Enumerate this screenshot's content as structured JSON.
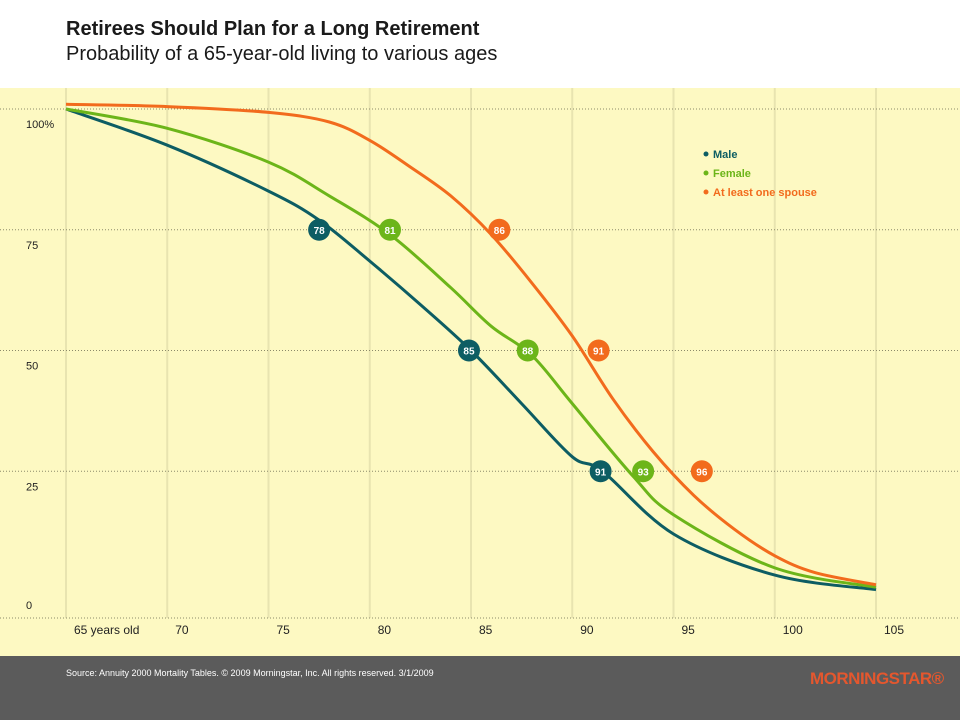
{
  "header": {
    "title": "Retirees Should Plan for a Long Retirement",
    "subtitle": "Probability of a 65-year-old living to various ages"
  },
  "footer": {
    "source": "Source: Annuity 2000 Mortality Tables. © 2009 Morningstar, Inc. All rights reserved. 3/1/2009",
    "logo": "MORNINGSTAR®"
  },
  "chart_data": {
    "type": "line",
    "title": "Retirees Should Plan for a Long Retirement",
    "subtitle": "Probability of a 65-year-old living to various ages",
    "xlabel": "",
    "ylabel": "",
    "xlim": [
      65,
      105
    ],
    "ylim": [
      0,
      100
    ],
    "x_ticks": [
      65,
      70,
      75,
      80,
      85,
      90,
      95,
      100,
      105
    ],
    "x_tick_labels": [
      "65 years old",
      "70",
      "75",
      "80",
      "85",
      "90",
      "95",
      "100",
      "105"
    ],
    "y_ticks": [
      0,
      25,
      50,
      75,
      100
    ],
    "y_tick_labels": [
      "0",
      "25",
      "50",
      "75",
      "100%"
    ],
    "grid": true,
    "legend_position": "top-right",
    "series": [
      {
        "name": "Male",
        "color": "#0d5d63",
        "points": [
          [
            65,
            100
          ],
          [
            70,
            92.5
          ],
          [
            75,
            83
          ],
          [
            77.5,
            77
          ],
          [
            80,
            68.5
          ],
          [
            82.5,
            59.5
          ],
          [
            85,
            50
          ],
          [
            87.5,
            39
          ],
          [
            90,
            28
          ],
          [
            91.5,
            25
          ],
          [
            95,
            12
          ],
          [
            100,
            3.5
          ],
          [
            105,
            0.5
          ]
        ],
        "markers": [
          {
            "x": 77.5,
            "y": 75,
            "label": "78"
          },
          {
            "x": 84.9,
            "y": 50,
            "label": "85"
          },
          {
            "x": 91.4,
            "y": 25,
            "label": "91"
          }
        ]
      },
      {
        "name": "Female",
        "color": "#6cb519",
        "points": [
          [
            65,
            100
          ],
          [
            70,
            96
          ],
          [
            75,
            89
          ],
          [
            78,
            82
          ],
          [
            81,
            74
          ],
          [
            84,
            63
          ],
          [
            86,
            55
          ],
          [
            88,
            49
          ],
          [
            90,
            39
          ],
          [
            93,
            24
          ],
          [
            95,
            16
          ],
          [
            100,
            5
          ],
          [
            105,
            1
          ]
        ],
        "markers": [
          {
            "x": 81,
            "y": 75,
            "label": "81"
          },
          {
            "x": 87.8,
            "y": 50,
            "label": "88"
          },
          {
            "x": 93.5,
            "y": 25,
            "label": "93"
          }
        ]
      },
      {
        "name": "At least one spouse",
        "color": "#f26b1d",
        "points": [
          [
            65,
            101
          ],
          [
            70,
            100.5
          ],
          [
            75,
            99.3
          ],
          [
            78,
            97.3
          ],
          [
            80,
            93.5
          ],
          [
            82,
            88
          ],
          [
            84,
            82
          ],
          [
            86,
            74
          ],
          [
            88,
            64
          ],
          [
            90,
            53
          ],
          [
            92,
            40
          ],
          [
            94,
            29
          ],
          [
            96,
            20
          ],
          [
            98,
            13
          ],
          [
            100,
            7.5
          ],
          [
            102,
            4
          ],
          [
            105,
            1.5
          ]
        ],
        "markers": [
          {
            "x": 86.4,
            "y": 75,
            "label": "86"
          },
          {
            "x": 91.3,
            "y": 50,
            "label": "91"
          },
          {
            "x": 96.4,
            "y": 25,
            "label": "96"
          }
        ]
      }
    ]
  }
}
